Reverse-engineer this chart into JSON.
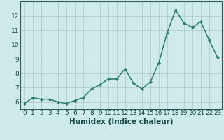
{
  "xlabel": "Humidex (Indice chaleur)",
  "x_values": [
    0,
    1,
    2,
    3,
    4,
    5,
    6,
    7,
    8,
    9,
    10,
    11,
    12,
    13,
    14,
    15,
    16,
    17,
    18,
    19,
    20,
    21,
    22,
    23
  ],
  "y_values": [
    5.9,
    6.3,
    6.2,
    6.2,
    6.0,
    5.9,
    6.1,
    6.3,
    6.9,
    7.2,
    7.6,
    7.6,
    8.3,
    7.3,
    6.9,
    7.4,
    8.7,
    10.8,
    12.4,
    11.5,
    11.2,
    11.6,
    10.3,
    9.1
  ],
  "line_color": "#2d7a6e",
  "marker": "D",
  "marker_size": 2.0,
  "background_color": "#ceeaea",
  "grid_color": "#b8cccc",
  "ylim": [
    5.5,
    13.0
  ],
  "yticks": [
    6,
    7,
    8,
    9,
    10,
    11,
    12
  ],
  "xticks": [
    0,
    1,
    2,
    3,
    4,
    5,
    6,
    7,
    8,
    9,
    10,
    11,
    12,
    13,
    14,
    15,
    16,
    17,
    18,
    19,
    20,
    21,
    22,
    23
  ],
  "xlabel_fontsize": 7.5,
  "tick_fontsize": 6.5,
  "line_width": 1.1
}
